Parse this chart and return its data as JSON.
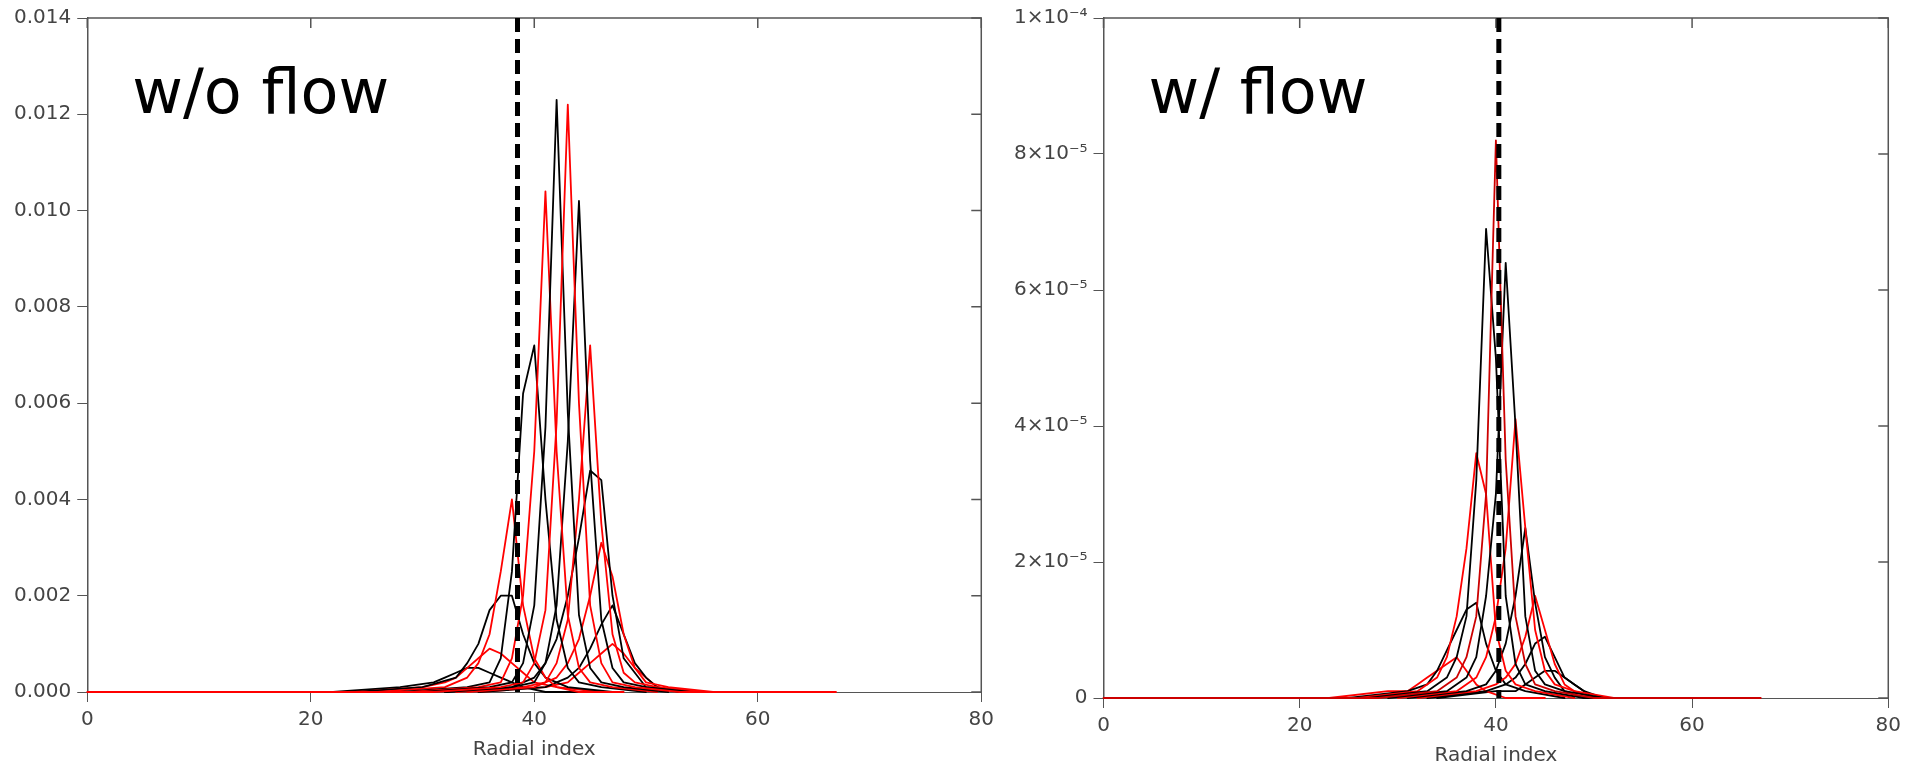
{
  "chart_data": [
    {
      "type": "line",
      "xlabel": "Radial index",
      "annotations": [
        "w/o flow"
      ],
      "xlim": [
        0,
        80
      ],
      "xticks": [
        0,
        20,
        40,
        60,
        80
      ],
      "ylim": [
        0,
        0.014
      ],
      "yticks": [
        {
          "value": 0,
          "label": "0.000"
        },
        {
          "value": 0.002,
          "label": "0.002"
        },
        {
          "value": 0.004,
          "label": "0.004"
        },
        {
          "value": 0.006,
          "label": "0.006"
        },
        {
          "value": 0.008,
          "label": "0.008"
        },
        {
          "value": 0.01,
          "label": "0.010"
        },
        {
          "value": 0.012,
          "label": "0.012"
        },
        {
          "value": 0.014,
          "label": "0.014"
        }
      ],
      "grid": false,
      "legend": false,
      "marker": "none",
      "line_style": "solid",
      "ref_lines": [
        {
          "axis": "x",
          "value": 38.5,
          "color": "#000000",
          "line_style": "dashed"
        }
      ],
      "series": [
        {
          "color": "#ff0000",
          "x": [
            0,
            31,
            37,
            39,
            40,
            41,
            42,
            43,
            44,
            45,
            46,
            47,
            49,
            53,
            67
          ],
          "values": [
            0,
            0,
            0.0001,
            0.0002,
            0.0006,
            0.0017,
            0.0056,
            0.0122,
            0.006,
            0.0018,
            0.0006,
            0.0002,
            0.0001,
            0,
            0
          ]
        },
        {
          "color": "#000000",
          "x": [
            30,
            36,
            38,
            39,
            40,
            41,
            42,
            43,
            44,
            45,
            46,
            48,
            52
          ],
          "values": [
            0,
            0.0001,
            0.0002,
            0.0006,
            0.0018,
            0.0055,
            0.0123,
            0.0058,
            0.0016,
            0.0005,
            0.0002,
            0.0001,
            0
          ]
        },
        {
          "color": "#ff0000",
          "x": [
            29,
            35,
            37,
            38,
            39,
            40,
            41,
            42,
            43,
            44,
            45,
            47,
            51
          ],
          "values": [
            0,
            0.0001,
            0.0002,
            0.0007,
            0.002,
            0.005,
            0.0104,
            0.005,
            0.0016,
            0.0005,
            0.0002,
            0.0001,
            0
          ]
        },
        {
          "color": "#000000",
          "x": [
            32,
            38,
            40,
            41,
            42,
            43,
            44,
            45,
            46,
            47,
            48,
            50,
            54
          ],
          "values": [
            0,
            0.0001,
            0.0002,
            0.0006,
            0.0018,
            0.0052,
            0.0102,
            0.0048,
            0.0015,
            0.0005,
            0.0002,
            0.0001,
            0
          ]
        },
        {
          "color": "#000000",
          "x": [
            28,
            34,
            36,
            37,
            38,
            39,
            40,
            41,
            42,
            43,
            44,
            46,
            50
          ],
          "values": [
            0,
            0.0001,
            0.0002,
            0.0007,
            0.0025,
            0.0062,
            0.0072,
            0.004,
            0.0015,
            0.0005,
            0.0002,
            0.0001,
            0
          ]
        },
        {
          "color": "#ff0000",
          "x": [
            33,
            39,
            41,
            42,
            43,
            44,
            45,
            46,
            47,
            48,
            49,
            51,
            55
          ],
          "values": [
            0,
            0.0001,
            0.0002,
            0.0006,
            0.0015,
            0.004,
            0.0072,
            0.0035,
            0.0012,
            0.0004,
            0.0002,
            0.0001,
            0
          ]
        },
        {
          "color": "#000000",
          "x": [
            32,
            38,
            40,
            41,
            42,
            43,
            44,
            45,
            46,
            47,
            48,
            50,
            54
          ],
          "values": [
            0,
            0.0001,
            0.0003,
            0.0006,
            0.0011,
            0.002,
            0.0032,
            0.0046,
            0.0044,
            0.002,
            0.0007,
            0.0001,
            0
          ]
        },
        {
          "color": "#ff0000",
          "x": [
            26,
            32,
            34,
            35,
            36,
            37,
            38,
            39,
            40,
            41,
            42,
            44,
            48
          ],
          "values": [
            0,
            0.0001,
            0.0003,
            0.0006,
            0.0012,
            0.0025,
            0.004,
            0.0018,
            0.0007,
            0.0003,
            0.0001,
            0,
            0
          ]
        },
        {
          "color": "#ff0000",
          "x": [
            34,
            40,
            42,
            43,
            44,
            45,
            46,
            47,
            48,
            49,
            50,
            52,
            56
          ],
          "values": [
            0,
            0.0001,
            0.0003,
            0.0006,
            0.0011,
            0.002,
            0.0031,
            0.0024,
            0.0012,
            0.0005,
            0.0002,
            0.0001,
            0
          ]
        },
        {
          "color": "#000000",
          "x": [
            24,
            30,
            33,
            34,
            35,
            36,
            37,
            38,
            39,
            40,
            41,
            43,
            47
          ],
          "values": [
            0,
            0.0001,
            0.0003,
            0.0006,
            0.001,
            0.0017,
            0.002,
            0.002,
            0.0012,
            0.0006,
            0.0003,
            0.0001,
            0
          ]
        },
        {
          "color": "#000000",
          "x": [
            35,
            41,
            43,
            44,
            45,
            46,
            47,
            48,
            49,
            50,
            51,
            53,
            57
          ],
          "values": [
            0,
            0.0001,
            0.0003,
            0.0005,
            0.0009,
            0.0014,
            0.0018,
            0.0012,
            0.0006,
            0.0003,
            0.0001,
            0,
            0
          ]
        },
        {
          "color": "#ff0000",
          "x": [
            24,
            30,
            32,
            33,
            34,
            35,
            36,
            37,
            38,
            39,
            40,
            42,
            46
          ],
          "values": [
            0,
            0.0001,
            0.0002,
            0.0003,
            0.0005,
            0.0007,
            0.0009,
            0.0008,
            0.0006,
            0.0004,
            0.0002,
            0.0001,
            0
          ]
        },
        {
          "color": "#ff0000",
          "x": [
            35,
            41,
            43,
            44,
            45,
            46,
            47,
            48,
            49,
            50,
            51,
            53,
            57
          ],
          "values": [
            0,
            0.0001,
            0.0002,
            0.0004,
            0.0006,
            0.0008,
            0.001,
            0.0008,
            0.0005,
            0.0003,
            0.0001,
            0,
            0
          ]
        },
        {
          "color": "#000000",
          "x": [
            22,
            28,
            31,
            32,
            33,
            34,
            35,
            36,
            37,
            38,
            39,
            41,
            45
          ],
          "values": [
            0,
            0.0001,
            0.0002,
            0.0003,
            0.0004,
            0.0005,
            0.0005,
            0.0004,
            0.0003,
            0.0002,
            0.0001,
            0,
            0
          ]
        }
      ]
    },
    {
      "type": "line",
      "xlabel": "Radial index",
      "annotations": [
        "w/ flow"
      ],
      "xlim": [
        0,
        80
      ],
      "xticks": [
        0,
        20,
        40,
        60,
        80
      ],
      "ylim": [
        0,
        0.0001
      ],
      "yticks": [
        0,
        {
          "value": 2e-05,
          "label": "2×10⁻⁵"
        },
        {
          "value": 4e-05,
          "label": "4×10⁻⁵"
        },
        {
          "value": 6e-05,
          "label": "6×10⁻⁵"
        },
        {
          "value": 8e-05,
          "label": "8×10⁻⁵"
        },
        {
          "value": 0.0001,
          "label": "1×10⁻⁴"
        }
      ],
      "grid": false,
      "legend": false,
      "marker": "none",
      "line_style": "solid",
      "ref_lines": [
        {
          "axis": "x",
          "value": 40.3,
          "color": "#000000",
          "line_style": "dashed"
        }
      ],
      "series": [
        {
          "color": "#cc0000",
          "x": [
            0,
            28,
            34,
            36,
            37,
            38,
            39,
            40,
            41,
            42,
            43,
            44,
            46,
            50,
            67
          ],
          "values": [
            0,
            0,
            1e-06,
            3e-06,
            6e-06,
            1.2e-05,
            3e-05,
            8.2e-05,
            3.5e-05,
            1.2e-05,
            5e-06,
            2e-06,
            1e-06,
            0,
            0
          ]
        },
        {
          "color": "#000000",
          "x": [
            27,
            33,
            35,
            36,
            37,
            38,
            39,
            40,
            41,
            42,
            43,
            45,
            49
          ],
          "values": [
            0,
            1e-06,
            3e-06,
            6e-06,
            1.2e-05,
            3.2e-05,
            6.9e-05,
            5e-05,
            1.5e-05,
            5e-06,
            2e-06,
            1e-06,
            0
          ]
        },
        {
          "color": "#000000",
          "x": [
            29,
            35,
            37,
            38,
            39,
            40,
            41,
            42,
            43,
            44,
            45,
            47,
            51
          ],
          "values": [
            0,
            1e-06,
            3e-06,
            6e-06,
            1.5e-05,
            3e-05,
            6.4e-05,
            4e-05,
            1.2e-05,
            4e-06,
            2e-06,
            1e-06,
            0
          ]
        },
        {
          "color": "#ff0000",
          "x": [
            30,
            36,
            38,
            39,
            40,
            41,
            42,
            43,
            44,
            45,
            46,
            48,
            52
          ],
          "values": [
            0,
            1e-06,
            3e-06,
            6e-06,
            1.2e-05,
            2.2e-05,
            4.1e-05,
            2.5e-05,
            1e-05,
            4e-06,
            2e-06,
            1e-06,
            0
          ]
        },
        {
          "color": "#ff0000",
          "x": [
            26,
            32,
            34,
            35,
            36,
            37,
            38,
            39,
            40,
            41,
            42,
            44,
            48
          ],
          "values": [
            0,
            1e-06,
            3e-06,
            6e-06,
            1.2e-05,
            2.2e-05,
            3.6e-05,
            3e-05,
            1e-05,
            4e-06,
            2e-06,
            1e-06,
            0
          ]
        },
        {
          "color": "#000000",
          "x": [
            31,
            37,
            39,
            40,
            41,
            42,
            43,
            44,
            45,
            46,
            47,
            49,
            53
          ],
          "values": [
            0,
            1e-06,
            2e-06,
            4e-06,
            8e-06,
            1.5e-05,
            2.5e-05,
            1.4e-05,
            6e-06,
            3e-06,
            1e-06,
            0,
            0
          ]
        },
        {
          "color": "#ff0000",
          "x": [
            32,
            38,
            40,
            41,
            42,
            43,
            44,
            45,
            46,
            47,
            48,
            50,
            54
          ],
          "values": [
            0,
            1e-06,
            2e-06,
            3e-06,
            5e-06,
            9e-06,
            1.5e-05,
            1e-05,
            5e-06,
            2e-06,
            1e-06,
            0,
            0
          ]
        },
        {
          "color": "#000000",
          "x": [
            25,
            31,
            33,
            34,
            35,
            36,
            37,
            38,
            39,
            40,
            41,
            43,
            47
          ],
          "values": [
            0,
            1e-06,
            2e-06,
            4e-06,
            7e-06,
            1e-05,
            1.3e-05,
            1.4e-05,
            8e-06,
            4e-06,
            2e-06,
            1e-06,
            0
          ]
        },
        {
          "color": "#000000",
          "x": [
            33,
            39,
            41,
            42,
            43,
            44,
            45,
            46,
            47,
            48,
            49,
            51,
            55
          ],
          "values": [
            0,
            1e-06,
            2e-06,
            3e-06,
            5e-06,
            8e-06,
            9e-06,
            6e-06,
            3e-06,
            2e-06,
            1e-06,
            0,
            0
          ]
        },
        {
          "color": "#ff0000",
          "x": [
            23,
            29,
            31,
            32,
            33,
            34,
            35,
            36,
            37,
            38,
            39,
            41,
            45
          ],
          "values": [
            0,
            1e-06,
            1e-06,
            2e-06,
            3e-06,
            4e-06,
            5e-06,
            6e-06,
            4e-06,
            2e-06,
            1e-06,
            0,
            0
          ]
        },
        {
          "color": "#000000",
          "x": [
            34,
            40,
            42,
            43,
            44,
            45,
            46,
            47,
            48,
            49,
            50,
            52,
            56
          ],
          "values": [
            0,
            1e-06,
            1e-06,
            2e-06,
            3e-06,
            4e-06,
            4e-06,
            3e-06,
            2e-06,
            1e-06,
            0,
            0,
            0
          ]
        }
      ]
    }
  ]
}
